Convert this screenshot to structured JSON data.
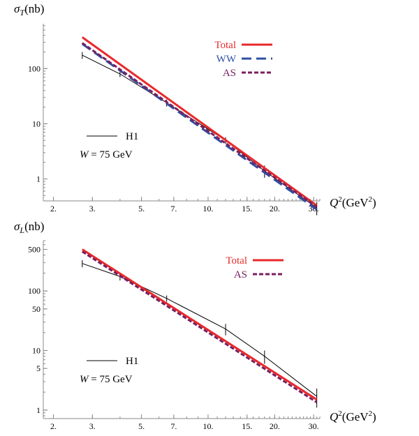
{
  "chart_data": [
    {
      "type": "line",
      "y_label_sym": "σ",
      "y_label_sub": "T",
      "y_label_unit": "(nb)",
      "x_label_sym": "Q",
      "x_label_sup": "2",
      "x_label_unit_a": "(GeV",
      "x_label_unit_sup": "2",
      "x_label_unit_b": ")",
      "x_scale": "log",
      "y_scale": "log",
      "xlim": [
        1.8,
        32
      ],
      "ylim": [
        0.4,
        650
      ],
      "x_ticks": [
        {
          "v": 2,
          "label": "2."
        },
        {
          "v": 3,
          "label": "3."
        },
        {
          "v": 5,
          "label": "5."
        },
        {
          "v": 7,
          "label": "7."
        },
        {
          "v": 10,
          "label": "10."
        },
        {
          "v": 15,
          "label": "15."
        },
        {
          "v": 20,
          "label": "20."
        },
        {
          "v": 30,
          "label": "30."
        }
      ],
      "y_ticks": [
        {
          "v": 1,
          "label": "1"
        },
        {
          "v": 10,
          "label": "10"
        },
        {
          "v": 100,
          "label": "100"
        }
      ],
      "legend": {
        "placement": "top-right",
        "entries": [
          "Total",
          "WW",
          "AS"
        ]
      },
      "annotation": {
        "line_label": "H1",
        "text_a": "W",
        "text_b": " = 75 GeV"
      },
      "series": [
        {
          "name": "Total",
          "color": "#e8292b",
          "dash": "solid",
          "x": [
            2.7,
            31
          ],
          "y": [
            370,
            0.33
          ]
        },
        {
          "name": "WW",
          "color": "#2e4fa3",
          "dash": "long",
          "x": [
            2.7,
            31
          ],
          "y": [
            280,
            0.28
          ]
        },
        {
          "name": "AS",
          "color": "#7a1f5f",
          "dash": "short",
          "x": [
            2.7,
            31
          ],
          "y": [
            290,
            0.31
          ]
        },
        {
          "name": "H1",
          "color": "#000000",
          "dash": "solid",
          "x": [
            2.7,
            4,
            6.5,
            12,
            18,
            31
          ],
          "y": [
            175,
            80,
            24,
            5,
            1.4,
            0.3
          ],
          "err": [
            25,
            10,
            3.5,
            0.7,
            0.35,
            0.08
          ]
        }
      ]
    },
    {
      "type": "line",
      "y_label_sym": "σ",
      "y_label_sub": "L",
      "y_label_unit": "(nb)",
      "x_label_sym": "Q",
      "x_label_sup": "2",
      "x_label_unit_a": "(GeV",
      "x_label_unit_sup": "2",
      "x_label_unit_b": ")",
      "x_scale": "log",
      "y_scale": "log",
      "xlim": [
        1.8,
        32
      ],
      "ylim": [
        0.72,
        700
      ],
      "x_ticks": [
        {
          "v": 2,
          "label": "2."
        },
        {
          "v": 3,
          "label": "3."
        },
        {
          "v": 5,
          "label": "5."
        },
        {
          "v": 7,
          "label": "7."
        },
        {
          "v": 10,
          "label": "10."
        },
        {
          "v": 15,
          "label": "15."
        },
        {
          "v": 20,
          "label": "20."
        },
        {
          "v": 30,
          "label": "30."
        }
      ],
      "y_ticks": [
        {
          "v": 1,
          "label": "1"
        },
        {
          "v": 5,
          "label": "5"
        },
        {
          "v": 10,
          "label": "10"
        },
        {
          "v": 50,
          "label": "50"
        },
        {
          "v": 100,
          "label": "100"
        },
        {
          "v": 500,
          "label": "500"
        }
      ],
      "legend": {
        "placement": "top-right",
        "entries": [
          "Total",
          "AS"
        ]
      },
      "annotation": {
        "line_label": "H1",
        "text_a": "W",
        "text_b": " = 75 GeV"
      },
      "series": [
        {
          "name": "Total",
          "color": "#e8292b",
          "dash": "solid",
          "x": [
            2.7,
            31
          ],
          "y": [
            500,
            1.5
          ]
        },
        {
          "name": "AS",
          "color": "#7a1f5f",
          "dash": "short",
          "x": [
            2.7,
            31
          ],
          "y": [
            460,
            1.35
          ]
        },
        {
          "name": "H1",
          "color": "#000000",
          "dash": "solid",
          "x": [
            2.7,
            4,
            6.5,
            12,
            18,
            31
          ],
          "y": [
            290,
            175,
            75,
            23,
            8,
            1.7
          ],
          "err": [
            40,
            25,
            9,
            5,
            2,
            0.6
          ]
        }
      ]
    }
  ]
}
